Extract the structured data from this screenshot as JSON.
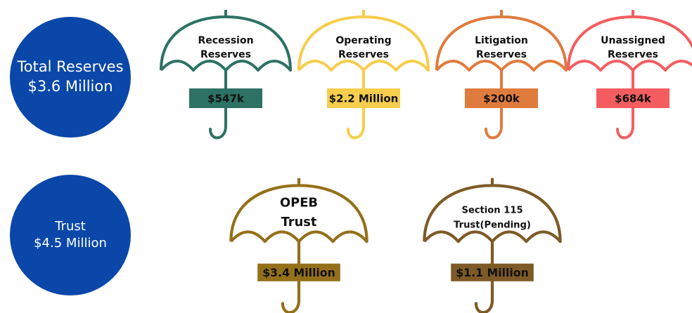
{
  "groups": [
    {
      "heading": [
        "Total Reserves",
        "$3.6 Million"
      ],
      "color": "#0a47a9",
      "umbrellas": [
        {
          "title": [
            "Recession",
            "Reserves"
          ],
          "amount": "$547k",
          "color": "#2d7264"
        },
        {
          "title": [
            "Operating",
            "Reserves"
          ],
          "amount": "$2.2 Million",
          "color": "#f6cd4c"
        },
        {
          "title": [
            "Litigation",
            "Reserves"
          ],
          "amount": "$200k",
          "color": "#e07b3e"
        },
        {
          "title": [
            "Unassigned",
            "Reserves"
          ],
          "amount": "$684k",
          "color": "#f45d60"
        }
      ]
    },
    {
      "heading": [
        "Trust",
        "$4.5 Million"
      ],
      "color": "#0a47a9",
      "umbrellas": [
        {
          "title": [
            "OPEB",
            "Trust"
          ],
          "amount": "$3.4 Million",
          "color": "#94701a"
        },
        {
          "title": [
            "Section 115",
            "Trust(Pending)"
          ],
          "amount": "$1.1 Million",
          "color": "#7d5a27"
        }
      ]
    }
  ]
}
